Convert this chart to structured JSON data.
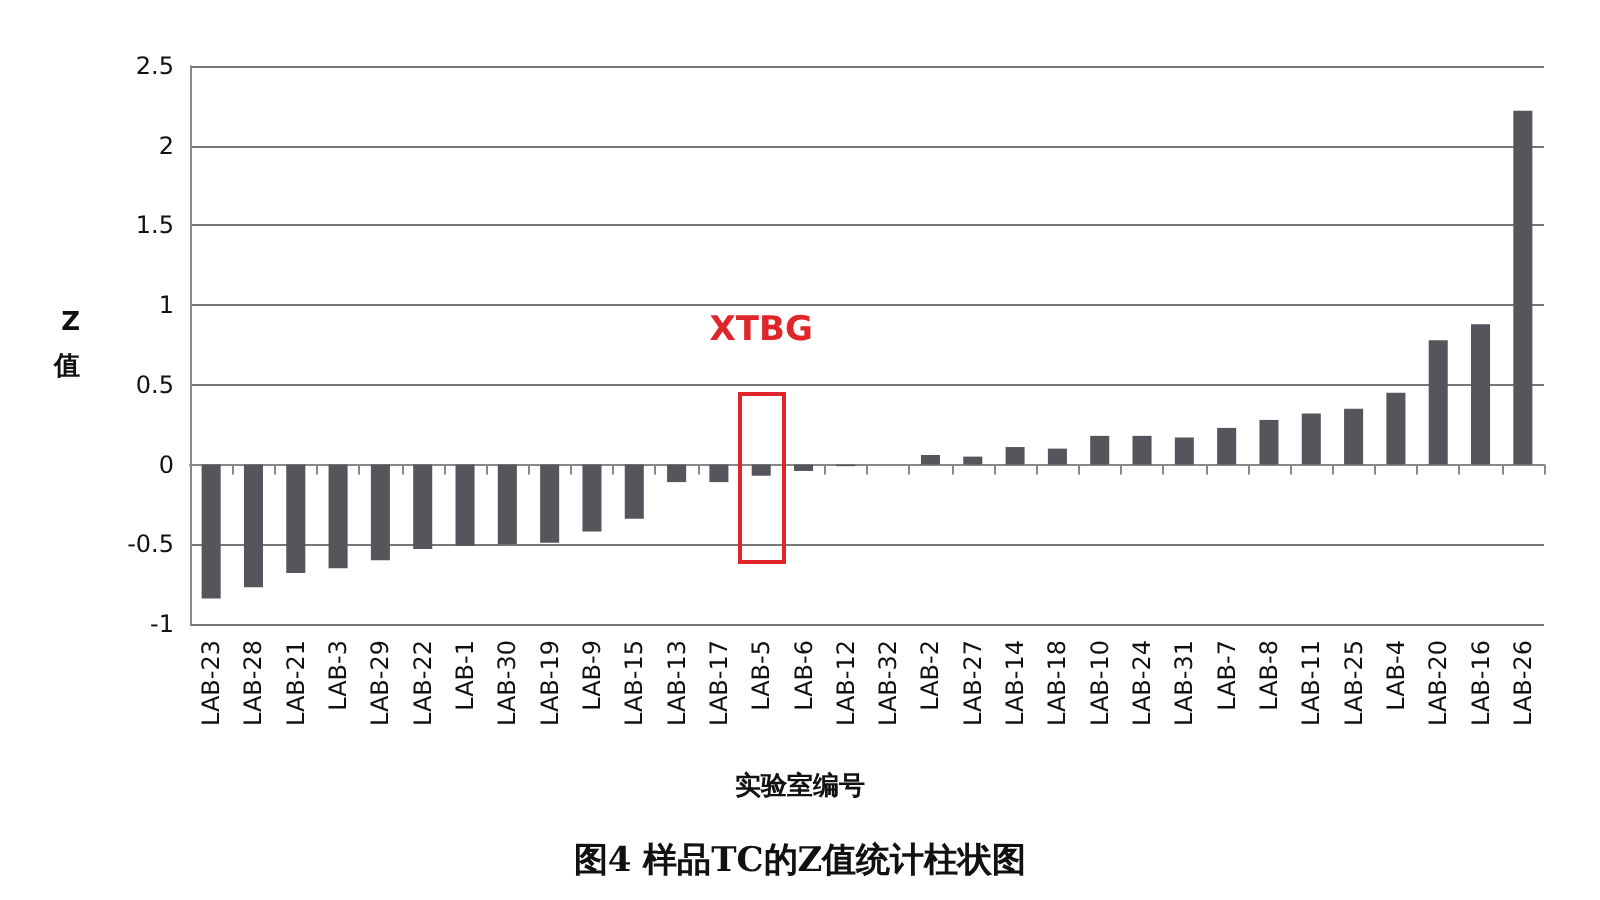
{
  "chart_data": {
    "type": "bar",
    "title": "图4 样品TC的Z值统计柱状图",
    "xlabel": "实验室编号",
    "ylabel": "Z\n值",
    "categories": [
      "LAB-23",
      "LAB-28",
      "LAB-21",
      "LAB-3",
      "LAB-29",
      "LAB-22",
      "LAB-1",
      "LAB-30",
      "LAB-19",
      "LAB-9",
      "LAB-15",
      "LAB-13",
      "LAB-17",
      "LAB-5",
      "LAB-6",
      "LAB-12",
      "LAB-32",
      "LAB-2",
      "LAB-27",
      "LAB-14",
      "LAB-18",
      "LAB-10",
      "LAB-24",
      "LAB-31",
      "LAB-7",
      "LAB-8",
      "LAB-11",
      "LAB-25",
      "LAB-4",
      "LAB-20",
      "LAB-16",
      "LAB-26"
    ],
    "values": [
      -0.84,
      -0.77,
      -0.68,
      -0.65,
      -0.6,
      -0.53,
      -0.51,
      -0.5,
      -0.49,
      -0.42,
      -0.34,
      -0.11,
      -0.11,
      -0.07,
      -0.04,
      -0.01,
      0,
      0.06,
      0.05,
      0.11,
      0.1,
      0.18,
      0.18,
      0.17,
      0.23,
      0.28,
      0.32,
      0.35,
      0.45,
      0.78,
      0.88,
      2.22
    ],
    "color": "#55555c",
    "ylim": [
      -1,
      2.5
    ],
    "yticks": [
      -1,
      -0.5,
      0,
      0.5,
      1,
      1.5,
      2,
      2.5
    ],
    "grid": "y",
    "annotations": [
      "XTBG"
    ]
  }
}
